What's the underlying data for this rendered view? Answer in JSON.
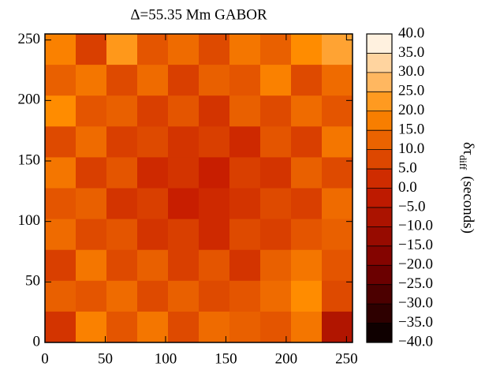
{
  "chart_data": {
    "type": "heatmap",
    "title": "Δ=55.35 Mm GABOR",
    "xlim": [
      0,
      255
    ],
    "ylim": [
      0,
      255
    ],
    "xticks": [
      0,
      50,
      100,
      150,
      200,
      250
    ],
    "yticks": [
      0,
      50,
      100,
      150,
      200,
      250
    ],
    "colormap": [
      "#000000",
      "#7a0000",
      "#c81e00",
      "#ff8c00",
      "#ffffff"
    ],
    "zlim": [
      -40,
      40
    ],
    "zticks": [
      {
        "value": 40,
        "label": "40.0"
      },
      {
        "value": 35,
        "label": "35.0"
      },
      {
        "value": 30,
        "label": "30.0"
      },
      {
        "value": 25,
        "label": "25.0"
      },
      {
        "value": 20,
        "label": "20.0"
      },
      {
        "value": 15,
        "label": "15.0"
      },
      {
        "value": 10,
        "label": "10.0"
      },
      {
        "value": 5,
        "label": "5.0"
      },
      {
        "value": 0,
        "label": "0.0"
      },
      {
        "value": -5,
        "label": "−5.0"
      },
      {
        "value": -10,
        "label": "−10.0"
      },
      {
        "value": -15,
        "label": "−15.0"
      },
      {
        "value": -20,
        "label": "−20.0"
      },
      {
        "value": -25,
        "label": "−25.0"
      },
      {
        "value": -30,
        "label": "−30.0"
      },
      {
        "value": -35,
        "label": "−35.0"
      },
      {
        "value": -40,
        "label": "−40.0"
      }
    ],
    "colorbar_label": {
      "symbol": "δτ",
      "subscript": "diff",
      "unit": "(seconds)"
    },
    "z": [
      [
        18,
        6,
        22,
        10,
        14,
        8,
        16,
        12,
        20,
        24
      ],
      [
        12,
        16,
        8,
        14,
        6,
        12,
        10,
        18,
        8,
        14
      ],
      [
        20,
        10,
        12,
        6,
        10,
        4,
        12,
        8,
        14,
        10
      ],
      [
        8,
        14,
        6,
        8,
        4,
        6,
        2,
        10,
        6,
        16
      ],
      [
        16,
        6,
        10,
        2,
        4,
        0,
        6,
        4,
        12,
        8
      ],
      [
        10,
        12,
        4,
        6,
        0,
        2,
        4,
        8,
        6,
        14
      ],
      [
        14,
        8,
        10,
        4,
        6,
        2,
        8,
        6,
        10,
        12
      ],
      [
        6,
        16,
        8,
        12,
        6,
        10,
        4,
        12,
        16,
        10
      ],
      [
        12,
        10,
        14,
        8,
        12,
        8,
        10,
        14,
        20,
        8
      ],
      [
        4,
        18,
        10,
        16,
        8,
        14,
        12,
        10,
        16,
        -6
      ]
    ]
  }
}
